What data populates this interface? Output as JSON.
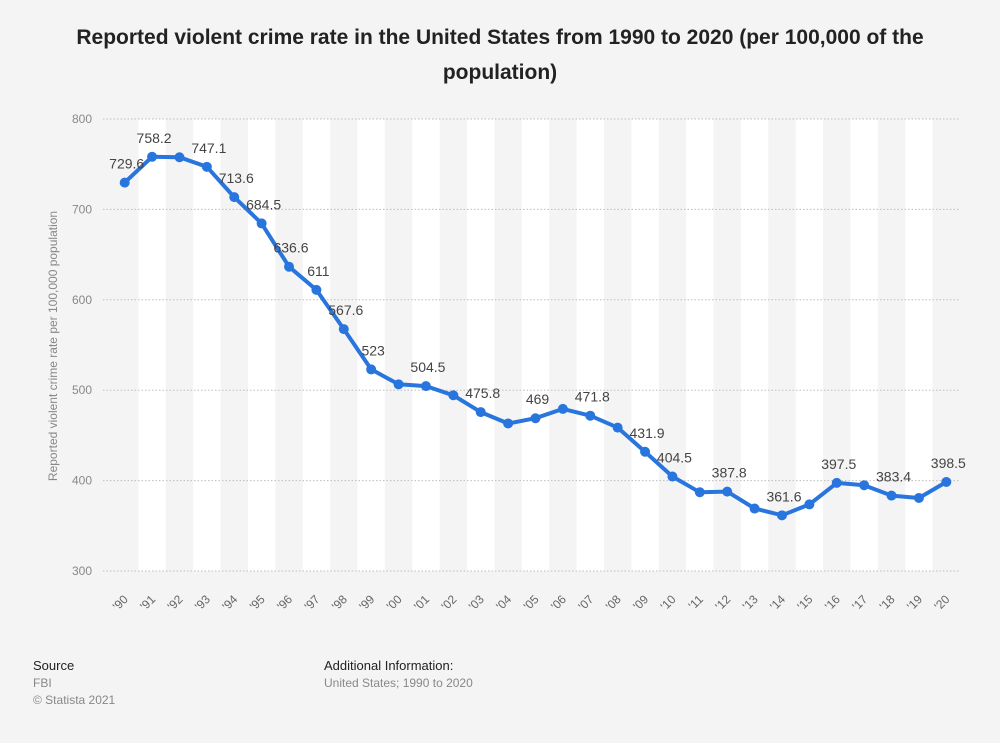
{
  "chart_data": {
    "type": "line",
    "title": "Reported violent crime rate in the United States from 1990 to 2020 (per 100,000 of the population)",
    "ylabel": "Reported violent crime rate per 100,000 population",
    "xlabel": "",
    "ylim": [
      300,
      800
    ],
    "yticks": [
      300,
      400,
      500,
      600,
      700,
      800
    ],
    "grid": true,
    "categories": [
      "'90",
      "'91",
      "'92",
      "'93",
      "'94",
      "'95",
      "'96",
      "'97",
      "'98",
      "'99",
      "'00",
      "'01",
      "'02",
      "'03",
      "'04",
      "'05",
      "'06",
      "'07",
      "'08",
      "'09",
      "'10",
      "'11",
      "'12",
      "'13",
      "'14",
      "'15",
      "'16",
      "'17",
      "'18",
      "'19",
      "'20"
    ],
    "values": [
      729.6,
      758.2,
      757.7,
      747.1,
      713.6,
      684.5,
      636.6,
      611,
      567.6,
      523,
      506.5,
      504.5,
      494.4,
      475.8,
      463.2,
      469,
      479.3,
      471.8,
      458.6,
      431.9,
      404.5,
      387.1,
      387.8,
      369.1,
      361.6,
      373.7,
      397.5,
      394.9,
      383.4,
      380.8,
      398.5
    ],
    "label_texts": [
      "729.6",
      "758.2",
      "",
      "747.1",
      "713.6",
      "684.5",
      "636.6",
      "611",
      "567.6",
      "523",
      "",
      "504.5",
      "",
      "475.8",
      "",
      "469",
      "",
      "471.8",
      "",
      "431.9",
      "404.5",
      "",
      "387.8",
      "",
      "361.6",
      "",
      "397.5",
      "",
      "383.4",
      "",
      "398.5"
    ],
    "line_color": "#2876dd"
  },
  "footer": {
    "source_heading": "Source",
    "source_name": "FBI",
    "copyright": "© Statista 2021",
    "info_heading": "Additional Information:",
    "info_text": "United States; 1990 to 2020"
  }
}
